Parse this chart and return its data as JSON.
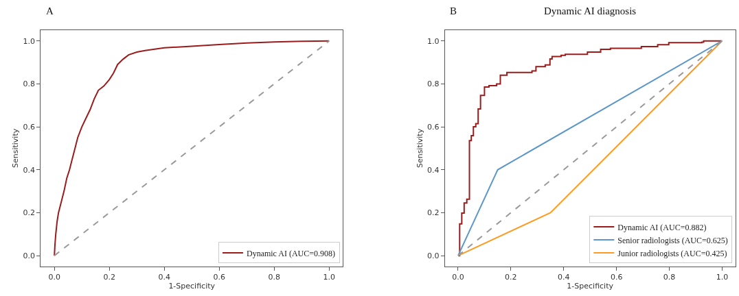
{
  "chart_data": [
    {
      "type": "line",
      "annotations": [
        "A"
      ],
      "xlabel": "1-Specificity",
      "ylabel": "Sensitivity",
      "xlim": [
        -0.05,
        1.05
      ],
      "ylim": [
        -0.05,
        1.05
      ],
      "xticks": [
        {
          "value": 0,
          "label": "0.0"
        },
        {
          "value": 0.2,
          "label": "0.2"
        },
        {
          "value": 0.4,
          "label": "0.4"
        },
        {
          "value": 0.6,
          "label": "0.6"
        },
        {
          "value": 0.8,
          "label": "0.8"
        },
        {
          "value": 1,
          "label": "1.0"
        }
      ],
      "yticks": [
        {
          "value": 0,
          "label": "0.0"
        },
        {
          "value": 0.2,
          "label": "0.2"
        },
        {
          "value": 0.4,
          "label": "0.4"
        },
        {
          "value": 0.6,
          "label": "0.6"
        },
        {
          "value": 0.8,
          "label": "0.8"
        },
        {
          "value": 1,
          "label": "1.0"
        }
      ],
      "legend": "bottom right",
      "marker": "none",
      "series": [
        {
          "name": "Dynamic AI (AUC=0.908)",
          "color": "#9b1b1b",
          "line_style": "solid",
          "x": [
            0,
            0.002,
            0.005,
            0.01,
            0.015,
            0.025,
            0.035,
            0.045,
            0.055,
            0.065,
            0.075,
            0.085,
            0.1,
            0.115,
            0.13,
            0.145,
            0.16,
            0.18,
            0.2,
            0.215,
            0.23,
            0.25,
            0.27,
            0.3,
            0.33,
            0.4,
            0.5,
            0.6,
            0.7,
            0.8,
            0.9,
            1
          ],
          "values": [
            0,
            0.05,
            0.1,
            0.16,
            0.2,
            0.25,
            0.3,
            0.36,
            0.4,
            0.45,
            0.5,
            0.55,
            0.6,
            0.64,
            0.68,
            0.73,
            0.77,
            0.79,
            0.82,
            0.85,
            0.89,
            0.915,
            0.935,
            0.948,
            0.955,
            0.968,
            0.975,
            0.983,
            0.99,
            0.995,
            0.998,
            1
          ]
        },
        {
          "color": "#999999",
          "line_style": "dashed",
          "x": [
            0,
            1
          ],
          "values": [
            0,
            1
          ]
        }
      ]
    },
    {
      "type": "line",
      "title": "Dynamic AI diagnosis",
      "annotations": [
        "B"
      ],
      "xlabel": "1-Specificity",
      "ylabel": "Sensitivity",
      "xlim": [
        -0.05,
        1.05
      ],
      "ylim": [
        -0.05,
        1.05
      ],
      "xticks": [
        {
          "value": 0,
          "label": "0.0"
        },
        {
          "value": 0.2,
          "label": "0.2"
        },
        {
          "value": 0.4,
          "label": "0.4"
        },
        {
          "value": 0.6,
          "label": "0.6"
        },
        {
          "value": 0.8,
          "label": "0.8"
        },
        {
          "value": 1,
          "label": "1.0"
        }
      ],
      "yticks": [
        {
          "value": 0,
          "label": "0.0"
        },
        {
          "value": 0.2,
          "label": "0.2"
        },
        {
          "value": 0.4,
          "label": "0.4"
        },
        {
          "value": 0.6,
          "label": "0.6"
        },
        {
          "value": 0.8,
          "label": "0.8"
        },
        {
          "value": 1,
          "label": "1.0"
        }
      ],
      "legend": "bottom right",
      "marker": "none",
      "series": [
        {
          "name": "Dynamic AI (AUC=0.882)",
          "type": "step",
          "color": "#9b1b1b",
          "line_style": "solid",
          "x": [
            0,
            0.006,
            0.014,
            0.023,
            0.033,
            0.043,
            0.05,
            0.058,
            0.067,
            0.076,
            0.085,
            0.1,
            0.117,
            0.146,
            0.16,
            0.185,
            0.28,
            0.295,
            0.33,
            0.348,
            0.356,
            0.39,
            0.406,
            0.49,
            0.54,
            0.577,
            0.694,
            0.756,
            0.798,
            0.923,
            0.93,
            1
          ],
          "values": [
            0,
            0.148,
            0.198,
            0.245,
            0.263,
            0.536,
            0.559,
            0.6,
            0.615,
            0.683,
            0.746,
            0.785,
            0.792,
            0.8,
            0.84,
            0.853,
            0.86,
            0.88,
            0.888,
            0.916,
            0.927,
            0.933,
            0.938,
            0.948,
            0.961,
            0.966,
            0.974,
            0.982,
            0.992,
            0.994,
            1,
            1
          ]
        },
        {
          "name": "Senior radiologists (AUC=0.625)",
          "color": "#5b97c9",
          "line_style": "solid",
          "x": [
            0,
            0.15,
            1
          ],
          "values": [
            0,
            0.4,
            1
          ]
        },
        {
          "name": "Junior radiologists (AUC=0.425)",
          "color": "#ff9a1f",
          "line_style": "solid",
          "x": [
            0,
            0.35,
            1
          ],
          "values": [
            0,
            0.2,
            1
          ]
        },
        {
          "color": "#999999",
          "line_style": "dashed",
          "x": [
            0,
            1
          ],
          "values": [
            0,
            1
          ]
        }
      ]
    }
  ]
}
